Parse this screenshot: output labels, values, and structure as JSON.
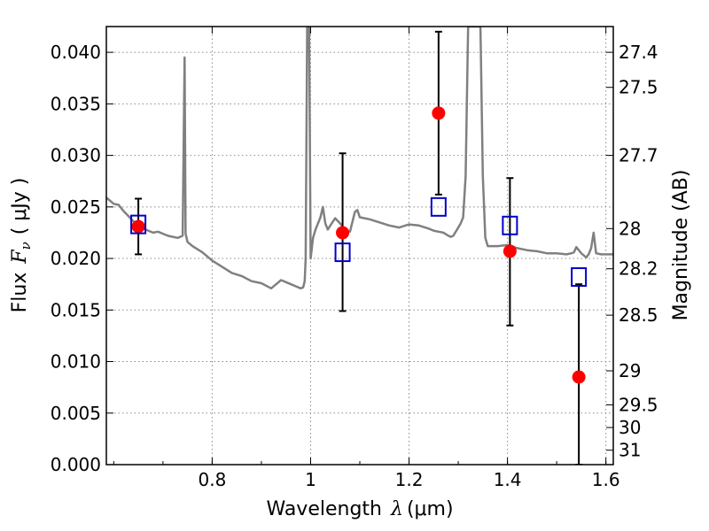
{
  "chart_data": {
    "type": "scatter",
    "title": "",
    "xlabel": "Wavelength",
    "xlabel_symbol": "λ",
    "xlabel_unit": "(μm)",
    "ylabel": "Flux",
    "ylabel_symbol": "F",
    "ylabel_symbol_sub": "ν",
    "ylabel_unit": "( μJy )",
    "y2label": "Magnitude (AB)",
    "xlim": [
      0.585,
      1.615
    ],
    "ylim": [
      0.0,
      0.0425
    ],
    "grid": true,
    "xticks": [
      0.8,
      1.0,
      1.2,
      1.4,
      1.6
    ],
    "xtick_labels": [
      "0.8",
      "1",
      "1.2",
      "1.4",
      "1.6"
    ],
    "yticks": [
      0.0,
      0.005,
      0.01,
      0.015,
      0.02,
      0.025,
      0.03,
      0.035,
      0.04
    ],
    "ytick_labels": [
      "0.000",
      "0.005",
      "0.010",
      "0.015",
      "0.020",
      "0.025",
      "0.030",
      "0.035",
      "0.040"
    ],
    "y2_ticks": [
      {
        "label": "27.4",
        "flux": 0.04
      },
      {
        "label": "27.5",
        "flux": 0.0366
      },
      {
        "label": "27.7",
        "flux": 0.03
      },
      {
        "label": "28",
        "flux": 0.0229
      },
      {
        "label": "28.2",
        "flux": 0.019
      },
      {
        "label": "28.5",
        "flux": 0.0145
      },
      {
        "label": "29",
        "flux": 0.0091
      },
      {
        "label": "29.5",
        "flux": 0.0058
      },
      {
        "label": "30",
        "flux": 0.0036
      },
      {
        "label": "31",
        "flux": 0.0014
      }
    ],
    "series": [
      {
        "kind": "line",
        "color": "#808080",
        "x": [
          0.585,
          0.6,
          0.61,
          0.62,
          0.63,
          0.64,
          0.65,
          0.66,
          0.67,
          0.68,
          0.69,
          0.7,
          0.71,
          0.72,
          0.73,
          0.74,
          0.744,
          0.746,
          0.75,
          0.76,
          0.78,
          0.8,
          0.82,
          0.84,
          0.86,
          0.88,
          0.9,
          0.92,
          0.94,
          0.95,
          0.96,
          0.97,
          0.975,
          0.98,
          0.985,
          0.988,
          0.99,
          0.993,
          0.997,
          1.0,
          1.005,
          1.01,
          1.02,
          1.025,
          1.03,
          1.035,
          1.04,
          1.05,
          1.06,
          1.07,
          1.08,
          1.09,
          1.095,
          1.1,
          1.12,
          1.14,
          1.16,
          1.18,
          1.2,
          1.22,
          1.24,
          1.25,
          1.26,
          1.27,
          1.28,
          1.285,
          1.29,
          1.3,
          1.305,
          1.31,
          1.315,
          1.32,
          1.33,
          1.345,
          1.35,
          1.355,
          1.36,
          1.38,
          1.4,
          1.42,
          1.44,
          1.46,
          1.48,
          1.5,
          1.52,
          1.53,
          1.535,
          1.54,
          1.55,
          1.56,
          1.565,
          1.57,
          1.575,
          1.58,
          1.59,
          1.6,
          1.615
        ],
        "y": [
          0.0259,
          0.0253,
          0.0252,
          0.0246,
          0.0241,
          0.0236,
          0.0232,
          0.0229,
          0.0227,
          0.0225,
          0.0226,
          0.0224,
          0.0222,
          0.0221,
          0.022,
          0.0222,
          0.0395,
          0.0224,
          0.0216,
          0.0212,
          0.0206,
          0.0198,
          0.0192,
          0.0186,
          0.0183,
          0.0178,
          0.0176,
          0.0171,
          0.0179,
          0.0177,
          0.0175,
          0.0173,
          0.0172,
          0.0171,
          0.0172,
          0.0178,
          0.02,
          0.0425,
          0.0425,
          0.02,
          0.022,
          0.0228,
          0.024,
          0.025,
          0.0234,
          0.0228,
          0.0232,
          0.0239,
          0.0234,
          0.0228,
          0.0226,
          0.0245,
          0.0247,
          0.024,
          0.0238,
          0.0235,
          0.0232,
          0.023,
          0.0233,
          0.0232,
          0.0229,
          0.0227,
          0.0226,
          0.0225,
          0.0222,
          0.0221,
          0.0222,
          0.023,
          0.0234,
          0.024,
          0.028,
          0.0425,
          0.0425,
          0.0425,
          0.028,
          0.022,
          0.0212,
          0.0212,
          0.0213,
          0.021,
          0.0208,
          0.0207,
          0.0205,
          0.0205,
          0.0204,
          0.0205,
          0.0206,
          0.0211,
          0.0205,
          0.0201,
          0.0204,
          0.021,
          0.0225,
          0.0205,
          0.0204,
          0.0204,
          0.0204
        ]
      },
      {
        "kind": "points",
        "marker": "filled-circle",
        "color": "#ff0000",
        "x": [
          0.65,
          1.065,
          1.26,
          1.405,
          1.545
        ],
        "y": [
          0.0231,
          0.0225,
          0.0341,
          0.0207,
          0.0085
        ],
        "yerr_low": [
          0.0204,
          0.0149,
          0.0262,
          0.0135,
          0.0
        ],
        "yerr_high": [
          0.0258,
          0.0302,
          0.042,
          0.0278,
          0.0175
        ]
      },
      {
        "kind": "points",
        "marker": "open-square",
        "color": "#0000cc",
        "x": [
          0.65,
          1.065,
          1.26,
          1.405,
          1.545
        ],
        "y": [
          0.0233,
          0.0206,
          0.025,
          0.0232,
          0.0182
        ]
      }
    ]
  }
}
